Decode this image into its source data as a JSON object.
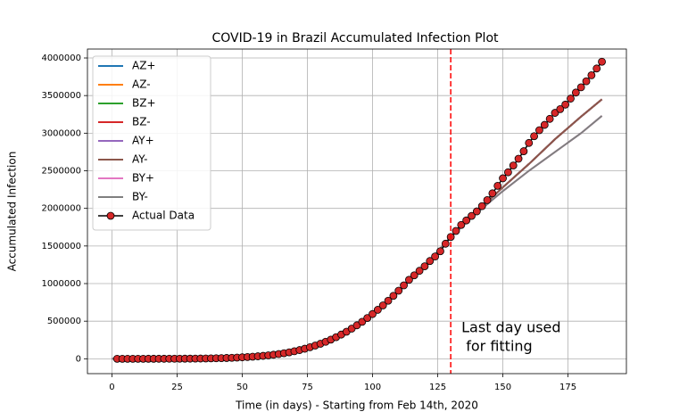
{
  "chart_data": {
    "type": "line",
    "title": "COVID-19 in Brazil Accumulated Infection Plot",
    "x_label": "Time (in days) - Starting from Feb 14th, 2020",
    "y_label": "Accumulated Infection",
    "annotation": [
      "Last day used",
      " for fitting"
    ],
    "vline": 130,
    "vline_color": "#ff0000",
    "grid": true,
    "legend": "upper left",
    "xlim": [
      -9.4,
      197.4
    ],
    "ylim": [
      -197500,
      4118700
    ],
    "xticks": [
      0,
      25,
      50,
      75,
      100,
      125,
      150,
      175
    ],
    "yticks": [
      0,
      500000,
      1000000,
      1500000,
      2000000,
      2500000,
      3000000,
      3500000,
      4000000
    ],
    "x": [
      0,
      10,
      20,
      30,
      40,
      50,
      60,
      70,
      80,
      90,
      100,
      110,
      120,
      130,
      140,
      150,
      160,
      170,
      180,
      188
    ],
    "series": [
      {
        "name": "AZ+",
        "color": "#1f77b4",
        "values": [
          0,
          0,
          500,
          2100,
          6800,
          19500,
          46000,
          100000,
          200000,
          360000,
          595000,
          905000,
          1230000,
          1620000,
          1960000,
          2280000,
          2590000,
          2920000,
          3220000,
          3450000
        ]
      },
      {
        "name": "AZ-",
        "color": "#ff7f0e",
        "values": [
          0,
          0,
          500,
          2100,
          6800,
          19500,
          46000,
          100000,
          200000,
          360000,
          595000,
          905000,
          1230000,
          1620000,
          1960000,
          2280000,
          2590000,
          2920000,
          3220000,
          3450000
        ]
      },
      {
        "name": "BZ+",
        "color": "#2ca02c",
        "values": [
          0,
          0,
          500,
          2100,
          6800,
          19500,
          46000,
          100000,
          200000,
          360000,
          595000,
          905000,
          1230000,
          1620000,
          1960000,
          2280000,
          2590000,
          2920000,
          3220000,
          3450000
        ]
      },
      {
        "name": "BZ-",
        "color": "#d62728",
        "values": [
          0,
          0,
          500,
          2100,
          6800,
          19500,
          46000,
          100000,
          200000,
          360000,
          595000,
          905000,
          1230000,
          1620000,
          1960000,
          2280000,
          2590000,
          2920000,
          3220000,
          3450000
        ]
      },
      {
        "name": "AY+",
        "color": "#9467bd",
        "values": [
          0,
          0,
          500,
          2100,
          6800,
          19500,
          46000,
          100000,
          200000,
          360000,
          595000,
          905000,
          1230000,
          1620000,
          1960000,
          2280000,
          2590000,
          2920000,
          3220000,
          3450000
        ]
      },
      {
        "name": "AY-",
        "color": "#8c564b",
        "values": [
          0,
          0,
          500,
          2100,
          6800,
          19500,
          46000,
          100000,
          200000,
          360000,
          595000,
          905000,
          1230000,
          1620000,
          1960000,
          2280000,
          2590000,
          2920000,
          3220000,
          3450000
        ]
      },
      {
        "name": "BY+",
        "color": "#e377c2",
        "values": [
          0,
          0,
          500,
          2100,
          6800,
          19500,
          46000,
          100000,
          200000,
          360000,
          595000,
          905000,
          1230000,
          1620000,
          1940000,
          2230000,
          2500000,
          2750000,
          3000000,
          3230000
        ]
      },
      {
        "name": "BY-",
        "color": "#7f7f7f",
        "values": [
          0,
          0,
          500,
          2100,
          6800,
          19500,
          46000,
          100000,
          200000,
          360000,
          595000,
          905000,
          1230000,
          1620000,
          1940000,
          2230000,
          2500000,
          2750000,
          3000000,
          3230000
        ]
      },
      {
        "name": "Actual Data",
        "color": "#000000",
        "marker_color": "#d62728",
        "x": [
          2,
          4,
          6,
          8,
          10,
          12,
          14,
          16,
          18,
          20,
          22,
          24,
          26,
          28,
          30,
          32,
          34,
          36,
          38,
          40,
          42,
          44,
          46,
          48,
          50,
          52,
          54,
          56,
          58,
          60,
          62,
          64,
          66,
          68,
          70,
          72,
          74,
          76,
          78,
          80,
          82,
          84,
          86,
          88,
          90,
          92,
          94,
          96,
          98,
          100,
          102,
          104,
          106,
          108,
          110,
          112,
          114,
          116,
          118,
          120,
          122,
          124,
          126,
          128,
          130,
          132,
          134,
          136,
          138,
          140,
          142,
          144,
          146,
          148,
          150,
          152,
          154,
          156,
          158,
          160,
          162,
          164,
          166,
          168,
          170,
          172,
          174,
          176,
          178,
          180,
          182,
          184,
          186,
          188
        ],
        "values": [
          0,
          0,
          0,
          0,
          0,
          0,
          100,
          200,
          300,
          500,
          700,
          900,
          1200,
          1600,
          2100,
          2700,
          3400,
          4300,
          5400,
          6800,
          8500,
          10500,
          13000,
          16000,
          19500,
          23500,
          28000,
          33000,
          39000,
          46000,
          54000,
          63000,
          74000,
          86000,
          100000,
          116000,
          134000,
          154000,
          176000,
          200000,
          226000,
          255000,
          287000,
          322000,
          360000,
          401000,
          445000,
          492000,
          542000,
          595000,
          651000,
          710000,
          772000,
          837000,
          905000,
          976000,
          1050000,
          1110000,
          1170000,
          1230000,
          1300000,
          1360000,
          1430000,
          1530000,
          1620000,
          1700000,
          1780000,
          1840000,
          1900000,
          1960000,
          2030000,
          2110000,
          2200000,
          2300000,
          2400000,
          2480000,
          2570000,
          2660000,
          2760000,
          2870000,
          2960000,
          3040000,
          3110000,
          3190000,
          3270000,
          3320000,
          3380000,
          3460000,
          3540000,
          3610000,
          3690000,
          3770000,
          3860000,
          3950000
        ]
      }
    ]
  }
}
